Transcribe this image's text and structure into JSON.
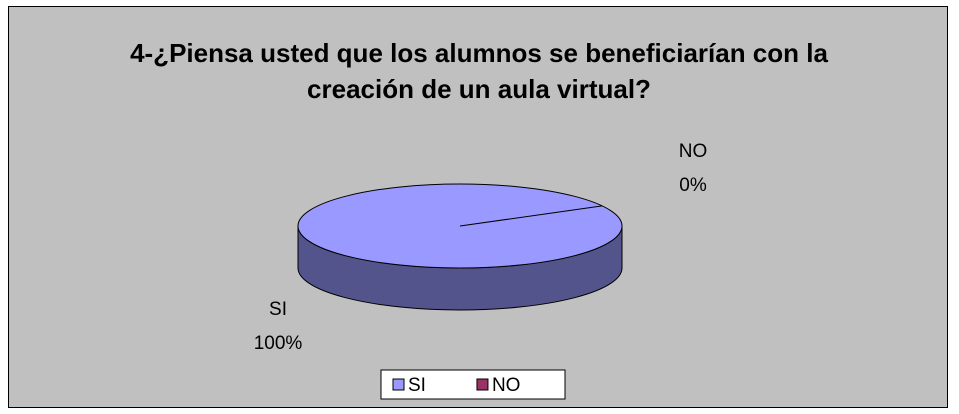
{
  "chart_data": {
    "type": "pie",
    "title": "4-¿Piensa usted que los alumnos se beneficiarían con la creación de un aula virtual?",
    "categories": [
      "SI",
      "NO"
    ],
    "values": [
      100,
      0
    ],
    "value_labels": [
      "100%",
      "0%"
    ],
    "colors": [
      "#9999ff",
      "#993366"
    ],
    "legend": "bottom"
  }
}
